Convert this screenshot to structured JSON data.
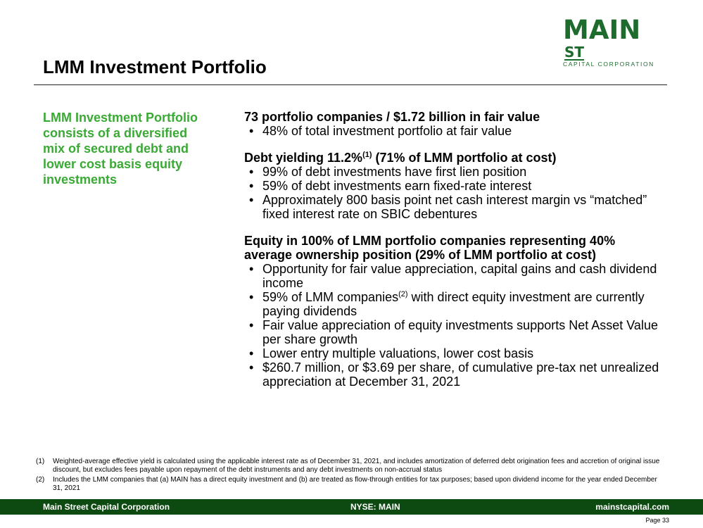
{
  "logo": {
    "main": "MAIN",
    "st": "ST",
    "sub": "CAPITAL CORPORATION"
  },
  "title": "LMM Investment Portfolio",
  "sidebar_text": "LMM Investment Portfolio consists of a diversified mix of secured debt and lower cost basis equity investments",
  "section1": {
    "heading": "73 portfolio companies / $1.72 billion in fair value",
    "bullets": [
      "48% of total investment portfolio at fair value"
    ]
  },
  "section2": {
    "heading_pre": "Debt yielding 11.2%",
    "heading_sup": "(1)",
    "heading_post": " (71% of LMM portfolio at cost)",
    "bullets": [
      "99% of debt investments have first lien position",
      "59% of debt investments earn fixed-rate interest",
      "Approximately 800 basis point net cash interest margin vs “matched” fixed interest rate on SBIC debentures"
    ]
  },
  "section3": {
    "heading": "Equity in 100% of LMM portfolio companies representing 40% average ownership position (29% of LMM portfolio at cost)",
    "bullet1": "Opportunity for fair value appreciation, capital gains and cash dividend income",
    "bullet2_pre": "59% of LMM companies",
    "bullet2_sup": "(2)",
    "bullet2_post": " with direct equity investment are currently paying dividends",
    "bullet3": "Fair value appreciation of equity investments supports Net Asset Value per share growth",
    "bullet4": "Lower entry multiple valuations, lower cost basis",
    "bullet5": "$260.7 million, or $3.69 per share, of cumulative pre-tax net unrealized appreciation at December 31, 2021"
  },
  "footnotes": [
    {
      "num": "(1)",
      "text": "Weighted-average effective yield is calculated using the applicable interest rate as of December 31, 2021, and includes amortization of deferred debt origination fees and accretion of original issue discount, but excludes fees payable upon repayment of the debt instruments and any debt investments on non-accrual status"
    },
    {
      "num": "(2)",
      "text": "Includes the LMM companies that (a) MAIN has a direct equity investment and (b) are treated as flow-through entities for tax purposes; based upon dividend income for the year ended December 31, 2021"
    }
  ],
  "footer": {
    "left": "Main Street Capital Corporation",
    "center": "NYSE: MAIN",
    "right": "mainstcapital.com"
  },
  "page": "Page  33",
  "colors": {
    "brand_green": "#1e6b2e",
    "accent_green": "#3aa935",
    "footer_bg": "#0d4a12"
  }
}
